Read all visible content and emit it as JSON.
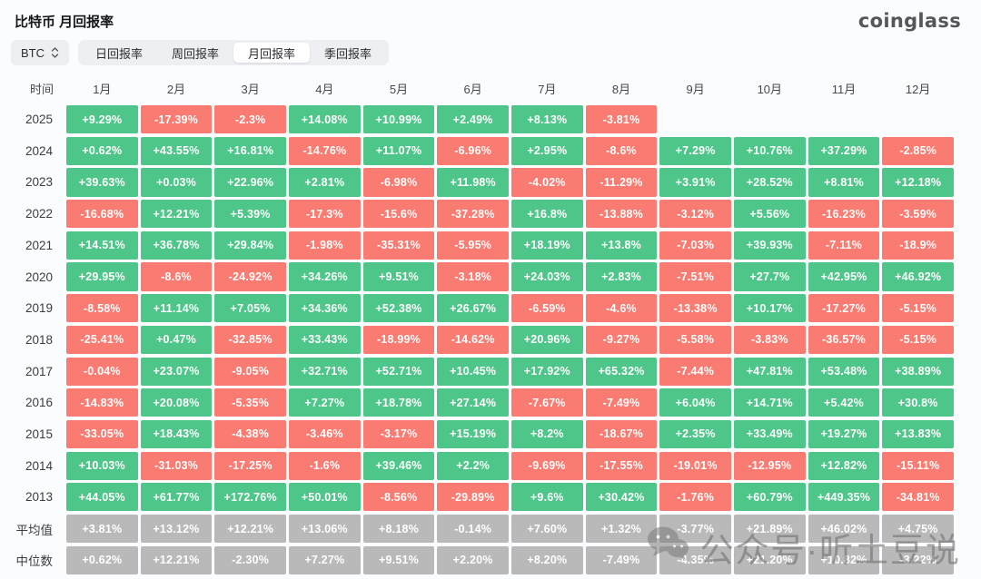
{
  "page": {
    "title": "比特币 月回报率",
    "logo": "coinglass"
  },
  "toolbar": {
    "coin_selector": {
      "value": "BTC"
    },
    "tabs": [
      {
        "label": "日回报率",
        "active": false
      },
      {
        "label": "周回报率",
        "active": false
      },
      {
        "label": "月回报率",
        "active": true
      },
      {
        "label": "季回报率",
        "active": false
      }
    ]
  },
  "table": {
    "time_header": "时间",
    "month_headers": [
      "1月",
      "2月",
      "3月",
      "4月",
      "5月",
      "6月",
      "7月",
      "8月",
      "9月",
      "10月",
      "11月",
      "12月"
    ],
    "rows": [
      {
        "label": "2025",
        "type": "year",
        "values": [
          "+9.29%",
          "-17.39%",
          "-2.3%",
          "+14.08%",
          "+10.99%",
          "+2.49%",
          "+8.13%",
          "-3.81%",
          "",
          "",
          "",
          ""
        ]
      },
      {
        "label": "2024",
        "type": "year",
        "values": [
          "+0.62%",
          "+43.55%",
          "+16.81%",
          "-14.76%",
          "+11.07%",
          "-6.96%",
          "+2.95%",
          "-8.6%",
          "+7.29%",
          "+10.76%",
          "+37.29%",
          "-2.85%"
        ]
      },
      {
        "label": "2023",
        "type": "year",
        "values": [
          "+39.63%",
          "+0.03%",
          "+22.96%",
          "+2.81%",
          "-6.98%",
          "+11.98%",
          "-4.02%",
          "-11.29%",
          "+3.91%",
          "+28.52%",
          "+8.81%",
          "+12.18%"
        ]
      },
      {
        "label": "2022",
        "type": "year",
        "values": [
          "-16.68%",
          "+12.21%",
          "+5.39%",
          "-17.3%",
          "-15.6%",
          "-37.28%",
          "+16.8%",
          "-13.88%",
          "-3.12%",
          "+5.56%",
          "-16.23%",
          "-3.59%"
        ]
      },
      {
        "label": "2021",
        "type": "year",
        "values": [
          "+14.51%",
          "+36.78%",
          "+29.84%",
          "-1.98%",
          "-35.31%",
          "-5.95%",
          "+18.19%",
          "+13.8%",
          "-7.03%",
          "+39.93%",
          "-7.11%",
          "-18.9%"
        ]
      },
      {
        "label": "2020",
        "type": "year",
        "values": [
          "+29.95%",
          "-8.6%",
          "-24.92%",
          "+34.26%",
          "+9.51%",
          "-3.18%",
          "+24.03%",
          "+2.83%",
          "-7.51%",
          "+27.7%",
          "+42.95%",
          "+46.92%"
        ]
      },
      {
        "label": "2019",
        "type": "year",
        "values": [
          "-8.58%",
          "+11.14%",
          "+7.05%",
          "+34.36%",
          "+52.38%",
          "+26.67%",
          "-6.59%",
          "-4.6%",
          "-13.38%",
          "+10.17%",
          "-17.27%",
          "-5.15%"
        ]
      },
      {
        "label": "2018",
        "type": "year",
        "values": [
          "-25.41%",
          "+0.47%",
          "-32.85%",
          "+33.43%",
          "-18.99%",
          "-14.62%",
          "+20.96%",
          "-9.27%",
          "-5.58%",
          "-3.83%",
          "-36.57%",
          "-5.15%"
        ]
      },
      {
        "label": "2017",
        "type": "year",
        "values": [
          "-0.04%",
          "+23.07%",
          "-9.05%",
          "+32.71%",
          "+52.71%",
          "+10.45%",
          "+17.92%",
          "+65.32%",
          "-7.44%",
          "+47.81%",
          "+53.48%",
          "+38.89%"
        ]
      },
      {
        "label": "2016",
        "type": "year",
        "values": [
          "-14.83%",
          "+20.08%",
          "-5.35%",
          "+7.27%",
          "+18.78%",
          "+27.14%",
          "-7.67%",
          "-7.49%",
          "+6.04%",
          "+14.71%",
          "+5.42%",
          "+30.8%"
        ]
      },
      {
        "label": "2015",
        "type": "year",
        "values": [
          "-33.05%",
          "+18.43%",
          "-4.38%",
          "-3.46%",
          "-3.17%",
          "+15.19%",
          "+8.2%",
          "-18.67%",
          "+2.35%",
          "+33.49%",
          "+19.27%",
          "+13.83%"
        ]
      },
      {
        "label": "2014",
        "type": "year",
        "values": [
          "+10.03%",
          "-31.03%",
          "-17.25%",
          "-1.6%",
          "+39.46%",
          "+2.2%",
          "-9.69%",
          "-17.55%",
          "-19.01%",
          "-12.95%",
          "+12.82%",
          "-15.11%"
        ]
      },
      {
        "label": "2013",
        "type": "year",
        "values": [
          "+44.05%",
          "+61.77%",
          "+172.76%",
          "+50.01%",
          "-8.56%",
          "-29.89%",
          "+9.6%",
          "+30.42%",
          "-1.76%",
          "+60.79%",
          "+449.35%",
          "-34.81%"
        ]
      },
      {
        "label": "平均值",
        "type": "summary",
        "values": [
          "+3.81%",
          "+13.12%",
          "+12.21%",
          "+13.06%",
          "+8.18%",
          "-0.14%",
          "+7.60%",
          "+1.32%",
          "-3.77%",
          "+21.89%",
          "+46.02%",
          "+4.75%"
        ]
      },
      {
        "label": "中位数",
        "type": "summary",
        "values": [
          "+0.62%",
          "+12.21%",
          "-2.30%",
          "+7.27%",
          "+9.51%",
          "+2.20%",
          "+8.20%",
          "-7.49%",
          "-4.35%",
          "+21.20%",
          "+10.82%",
          "-3.22%"
        ]
      }
    ]
  },
  "watermark": {
    "icon": "wechat-icon",
    "text": "公众号·听土豆说"
  },
  "colors": {
    "positive": "#4ec68a",
    "negative": "#f97b71",
    "summary": "#b9b9b9"
  }
}
